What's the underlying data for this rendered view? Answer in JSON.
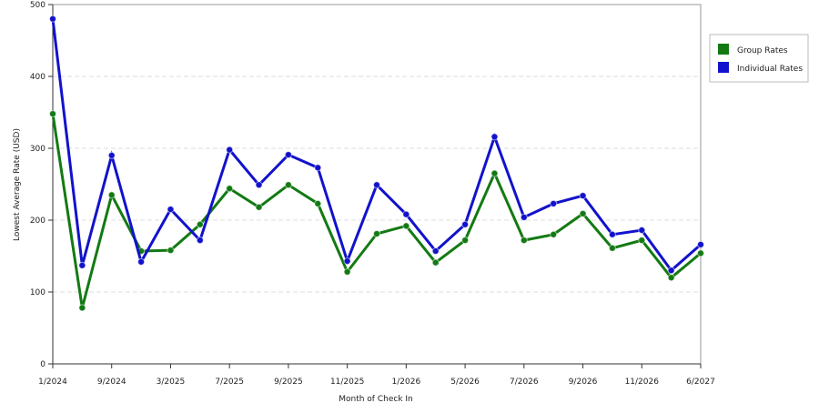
{
  "chart_data": {
    "type": "line",
    "x_label": "Month of Check In",
    "y_label": "Lowest Average Rate (USD)",
    "categories": [
      "1/2024",
      null,
      "9/2024",
      null,
      "3/2025",
      null,
      "7/2025",
      null,
      "9/2025",
      null,
      "11/2025",
      null,
      "1/2026",
      null,
      "5/2026",
      null,
      "7/2026",
      null,
      "9/2026",
      null,
      "11/2026",
      null,
      "6/2027"
    ],
    "series": [
      {
        "name": "Group Rates",
        "color": "#137a13",
        "values": [
          348,
          78,
          235,
          157,
          158,
          194,
          244,
          218,
          249,
          223,
          128,
          181,
          192,
          141,
          172,
          265,
          172,
          180,
          209,
          161,
          172,
          120,
          154
        ]
      },
      {
        "name": "Individual Rates",
        "color": "#1212cc",
        "values": [
          480,
          137,
          290,
          142,
          215,
          172,
          298,
          249,
          291,
          273,
          143,
          249,
          208,
          157,
          194,
          316,
          204,
          223,
          234,
          180,
          186,
          130,
          166
        ]
      }
    ],
    "ylim": [
      0,
      500
    ],
    "yticks": [
      0,
      100,
      200,
      300,
      400,
      500
    ],
    "grid": true,
    "legend": "right"
  }
}
